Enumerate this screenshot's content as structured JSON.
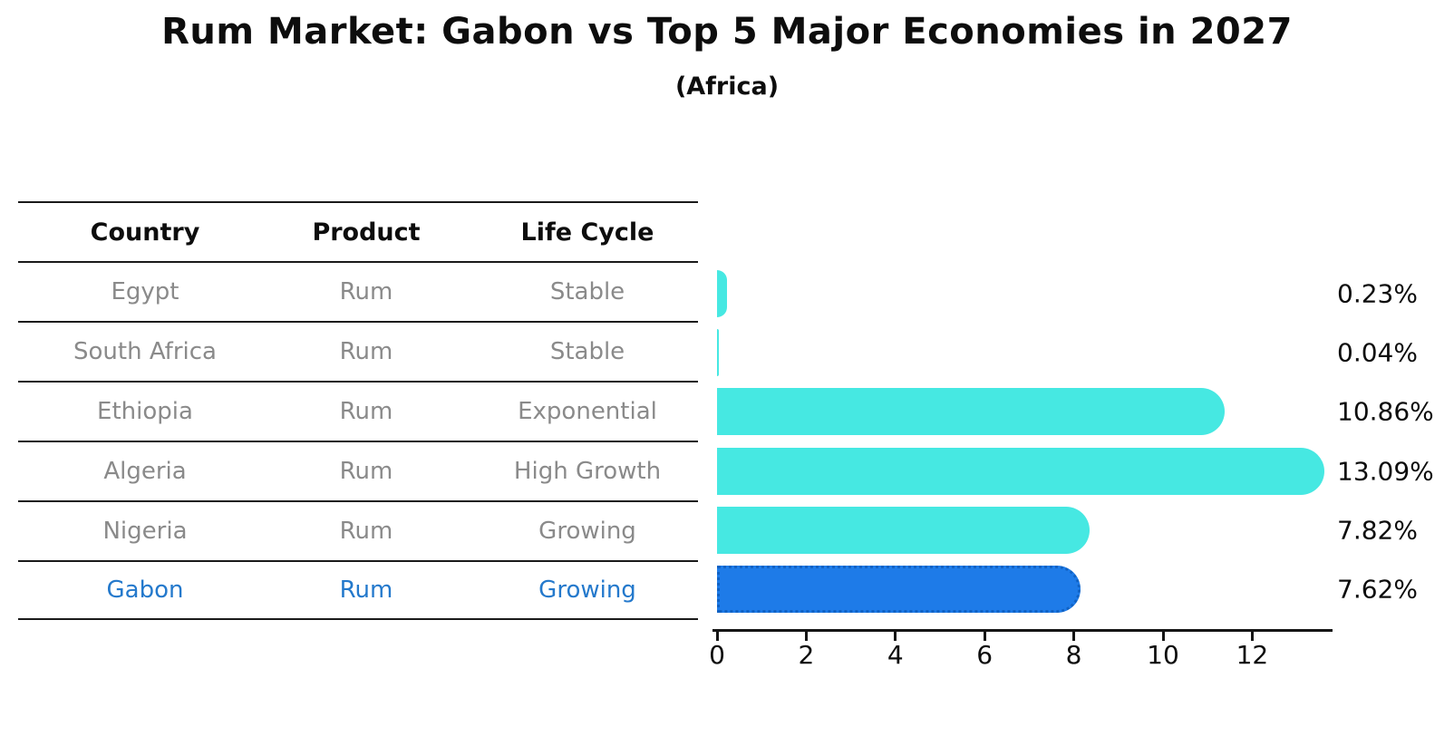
{
  "title": "Rum Market: Gabon vs Top 5 Major Economies in 2027",
  "subtitle": "(Africa)",
  "table": {
    "headers": [
      "Country",
      "Product",
      "Life Cycle"
    ],
    "rows": [
      {
        "cells": [
          "Egypt",
          "Rum",
          "Stable"
        ],
        "highlight": false
      },
      {
        "cells": [
          "South Africa",
          "Rum",
          "Stable"
        ],
        "highlight": false
      },
      {
        "cells": [
          "Ethiopia",
          "Rum",
          "Exponential"
        ],
        "highlight": false
      },
      {
        "cells": [
          "Algeria",
          "Rum",
          "High Growth"
        ],
        "highlight": false
      },
      {
        "cells": [
          "Nigeria",
          "Rum",
          "Growing"
        ],
        "highlight": false
      },
      {
        "cells": [
          "Gabon",
          "Rum",
          "Growing"
        ],
        "highlight": true
      }
    ]
  },
  "chart_data": {
    "type": "bar",
    "orientation": "horizontal",
    "title": "Rum Market: Gabon vs Top 5 Major Economies in 2027",
    "subtitle": "(Africa)",
    "categories": [
      "Egypt",
      "South Africa",
      "Ethiopia",
      "Algeria",
      "Nigeria",
      "Gabon"
    ],
    "values": [
      0.23,
      0.04,
      10.86,
      13.09,
      7.82,
      7.62
    ],
    "value_labels": [
      "0.23%",
      "0.04%",
      "10.86%",
      "13.09%",
      "7.82%",
      "7.62%"
    ],
    "x_ticks": [
      0,
      2,
      4,
      6,
      8,
      10,
      12
    ],
    "xlim": [
      0,
      13.8
    ],
    "grid": false,
    "legend": false,
    "highlight_index": 5,
    "xlabel": "",
    "ylabel": ""
  },
  "colors": {
    "bar_fill": "#46E8E2",
    "highlight_fill": "#1E7BE8",
    "highlight_border": "#1062C4",
    "highlight_text": "#2479CC",
    "row_text": "#8A8A8A",
    "heading_text": "#0D0D0D",
    "axis_line": "#151515",
    "table_line": "#1A1A1A"
  }
}
